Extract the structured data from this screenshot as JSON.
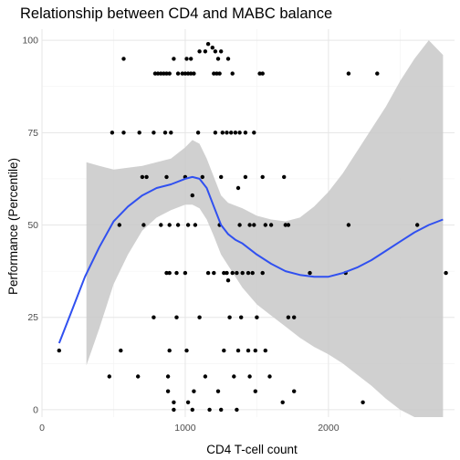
{
  "chart_data": {
    "type": "scatter",
    "title": "Relationship between CD4 and MABC balance",
    "xlabel": "CD4 T-cell count",
    "ylabel": "Performance (Percentile)",
    "xlim": [
      0,
      2880
    ],
    "ylim": [
      -2,
      103
    ],
    "x_ticks": [
      0,
      1000,
      2000
    ],
    "x_minor_ticks": [
      500,
      1500,
      2500
    ],
    "y_ticks": [
      0,
      25,
      50,
      75,
      100
    ],
    "y_minor_ticks": [
      12.5,
      37.5,
      62.5,
      87.5
    ],
    "grid": true,
    "legend": "none",
    "colors": {
      "points": "#000000",
      "smooth_line": "#3050f0",
      "ci_band": "#c8c8c8"
    },
    "points": [
      [
        120,
        16
      ],
      [
        470,
        9
      ],
      [
        670,
        9
      ],
      [
        880,
        9
      ],
      [
        1140,
        9
      ],
      [
        1340,
        9
      ],
      [
        1450,
        9
      ],
      [
        1590,
        9
      ],
      [
        880,
        5
      ],
      [
        1060,
        5
      ],
      [
        1230,
        5
      ],
      [
        1490,
        5
      ],
      [
        1760,
        5
      ],
      [
        920,
        2
      ],
      [
        1020,
        2
      ],
      [
        1680,
        2
      ],
      [
        2240,
        2
      ],
      [
        920,
        0
      ],
      [
        1050,
        0
      ],
      [
        1170,
        0
      ],
      [
        1250,
        0
      ],
      [
        1360,
        0
      ],
      [
        550,
        16
      ],
      [
        890,
        16
      ],
      [
        1010,
        16
      ],
      [
        1270,
        16
      ],
      [
        1370,
        16
      ],
      [
        1440,
        16
      ],
      [
        1490,
        16
      ],
      [
        1560,
        16
      ],
      [
        780,
        25
      ],
      [
        940,
        25
      ],
      [
        1100,
        25
      ],
      [
        1310,
        25
      ],
      [
        1390,
        25
      ],
      [
        1500,
        25
      ],
      [
        1720,
        25
      ],
      [
        1760,
        25
      ],
      [
        870,
        37
      ],
      [
        890,
        37
      ],
      [
        940,
        37
      ],
      [
        1000,
        37
      ],
      [
        1160,
        37
      ],
      [
        1200,
        37
      ],
      [
        1270,
        37
      ],
      [
        1290,
        37
      ],
      [
        1330,
        37
      ],
      [
        1360,
        37
      ],
      [
        1400,
        37
      ],
      [
        1440,
        37
      ],
      [
        1470,
        37
      ],
      [
        1540,
        37
      ],
      [
        1870,
        37
      ],
      [
        2120,
        37
      ],
      [
        2820,
        37
      ],
      [
        1300,
        35
      ],
      [
        540,
        50
      ],
      [
        710,
        50
      ],
      [
        830,
        50
      ],
      [
        890,
        50
      ],
      [
        950,
        50
      ],
      [
        1020,
        50
      ],
      [
        1070,
        50
      ],
      [
        1240,
        50
      ],
      [
        1380,
        50
      ],
      [
        1450,
        50
      ],
      [
        1480,
        50
      ],
      [
        1560,
        50
      ],
      [
        1600,
        50
      ],
      [
        1700,
        50
      ],
      [
        1720,
        50
      ],
      [
        2140,
        50
      ],
      [
        2620,
        50
      ],
      [
        700,
        63
      ],
      [
        730,
        63
      ],
      [
        870,
        63
      ],
      [
        1000,
        63
      ],
      [
        1120,
        63
      ],
      [
        1250,
        63
      ],
      [
        1420,
        63
      ],
      [
        1540,
        63
      ],
      [
        1690,
        63
      ],
      [
        1370,
        60
      ],
      [
        1050,
        58
      ],
      [
        490,
        75
      ],
      [
        570,
        75
      ],
      [
        680,
        75
      ],
      [
        780,
        75
      ],
      [
        860,
        75
      ],
      [
        900,
        75
      ],
      [
        1090,
        75
      ],
      [
        1210,
        75
      ],
      [
        1260,
        75
      ],
      [
        1290,
        75
      ],
      [
        1320,
        75
      ],
      [
        1350,
        75
      ],
      [
        1380,
        75
      ],
      [
        1420,
        75
      ],
      [
        1480,
        75
      ],
      [
        570,
        95
      ],
      [
        920,
        95
      ],
      [
        1010,
        95
      ],
      [
        1040,
        95
      ],
      [
        1230,
        95
      ],
      [
        1300,
        95
      ],
      [
        790,
        91
      ],
      [
        810,
        91
      ],
      [
        830,
        91
      ],
      [
        850,
        91
      ],
      [
        870,
        91
      ],
      [
        890,
        91
      ],
      [
        950,
        91
      ],
      [
        980,
        91
      ],
      [
        1000,
        91
      ],
      [
        1020,
        91
      ],
      [
        1040,
        91
      ],
      [
        1060,
        91
      ],
      [
        1200,
        91
      ],
      [
        1220,
        91
      ],
      [
        1240,
        91
      ],
      [
        1330,
        91
      ],
      [
        1520,
        91
      ],
      [
        1540,
        91
      ],
      [
        2140,
        91
      ],
      [
        2340,
        91
      ],
      [
        1100,
        97
      ],
      [
        1140,
        97
      ],
      [
        1210,
        97
      ],
      [
        1250,
        97
      ],
      [
        1160,
        99
      ],
      [
        1190,
        98
      ]
    ],
    "smooth_line": {
      "x": [
        120,
        200,
        300,
        400,
        500,
        600,
        700,
        800,
        900,
        1000,
        1050,
        1100,
        1150,
        1200,
        1250,
        1300,
        1350,
        1400,
        1500,
        1600,
        1700,
        1800,
        1900,
        2000,
        2100,
        2200,
        2300,
        2400,
        2500,
        2600,
        2700,
        2800
      ],
      "y": [
        18,
        26,
        36,
        44,
        51,
        55,
        58,
        60,
        61,
        62.5,
        63,
        62.5,
        60,
        55,
        50,
        47.5,
        46,
        45,
        42,
        39.5,
        37.5,
        36.5,
        36,
        36,
        37,
        38.5,
        40.5,
        43,
        45.5,
        48,
        50,
        51.5
      ]
    },
    "ci_band": {
      "x": [
        310,
        400,
        500,
        600,
        700,
        800,
        900,
        1000,
        1050,
        1100,
        1150,
        1200,
        1250,
        1300,
        1400,
        1500,
        1600,
        1700,
        1800,
        1900,
        2000,
        2100,
        2200,
        2300,
        2400,
        2500,
        2600,
        2700,
        2800
      ],
      "upper": [
        67,
        66,
        65,
        65.5,
        66,
        67,
        68,
        71,
        73,
        72,
        68,
        63,
        58,
        56,
        54.5,
        52.5,
        51.5,
        51,
        52,
        55,
        59,
        64,
        70,
        76,
        82,
        89,
        95,
        100,
        96
      ],
      "lower": [
        12,
        22,
        34,
        42,
        48.5,
        52,
        54,
        55.5,
        55.5,
        54.5,
        51.5,
        47,
        42,
        39,
        33,
        28.5,
        25.5,
        22.5,
        19.5,
        17,
        15,
        12.5,
        9.5,
        6.5,
        3,
        0,
        -2,
        -2,
        -2
      ]
    }
  }
}
